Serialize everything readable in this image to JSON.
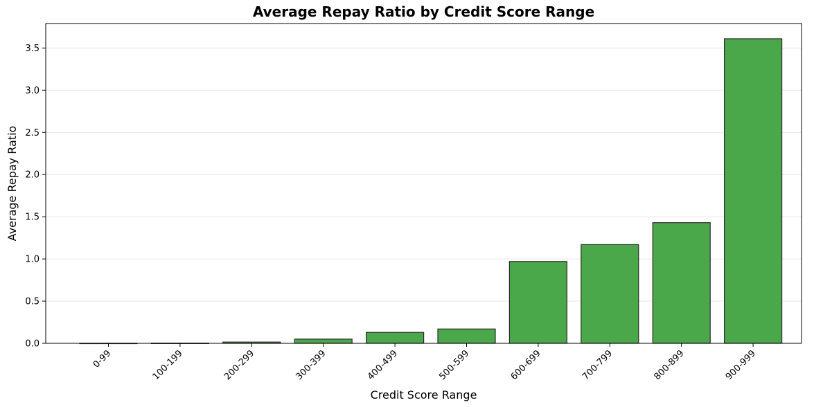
{
  "chart_data": {
    "type": "bar",
    "title": "Average Repay Ratio by Credit Score Range",
    "xlabel": "Credit Score Range",
    "ylabel": "Average Repay Ratio",
    "categories": [
      "0-99",
      "100-199",
      "200-299",
      "300-399",
      "400-499",
      "500-599",
      "600-699",
      "700-799",
      "800-899",
      "900-999"
    ],
    "values": [
      0.001,
      0.002,
      0.015,
      0.05,
      0.13,
      0.17,
      0.97,
      1.17,
      1.43,
      3.61
    ],
    "ylim": [
      0,
      3.79
    ],
    "yticks": [
      0.0,
      0.5,
      1.0,
      1.5,
      2.0,
      2.5,
      3.0,
      3.5
    ],
    "ytick_labels": [
      "0.0",
      "0.5",
      "1.0",
      "1.5",
      "2.0",
      "2.5",
      "3.0",
      "3.5"
    ],
    "grid": "y",
    "bar_color": "#4aa74a",
    "bar_edge_color": "#2b2b2b"
  }
}
